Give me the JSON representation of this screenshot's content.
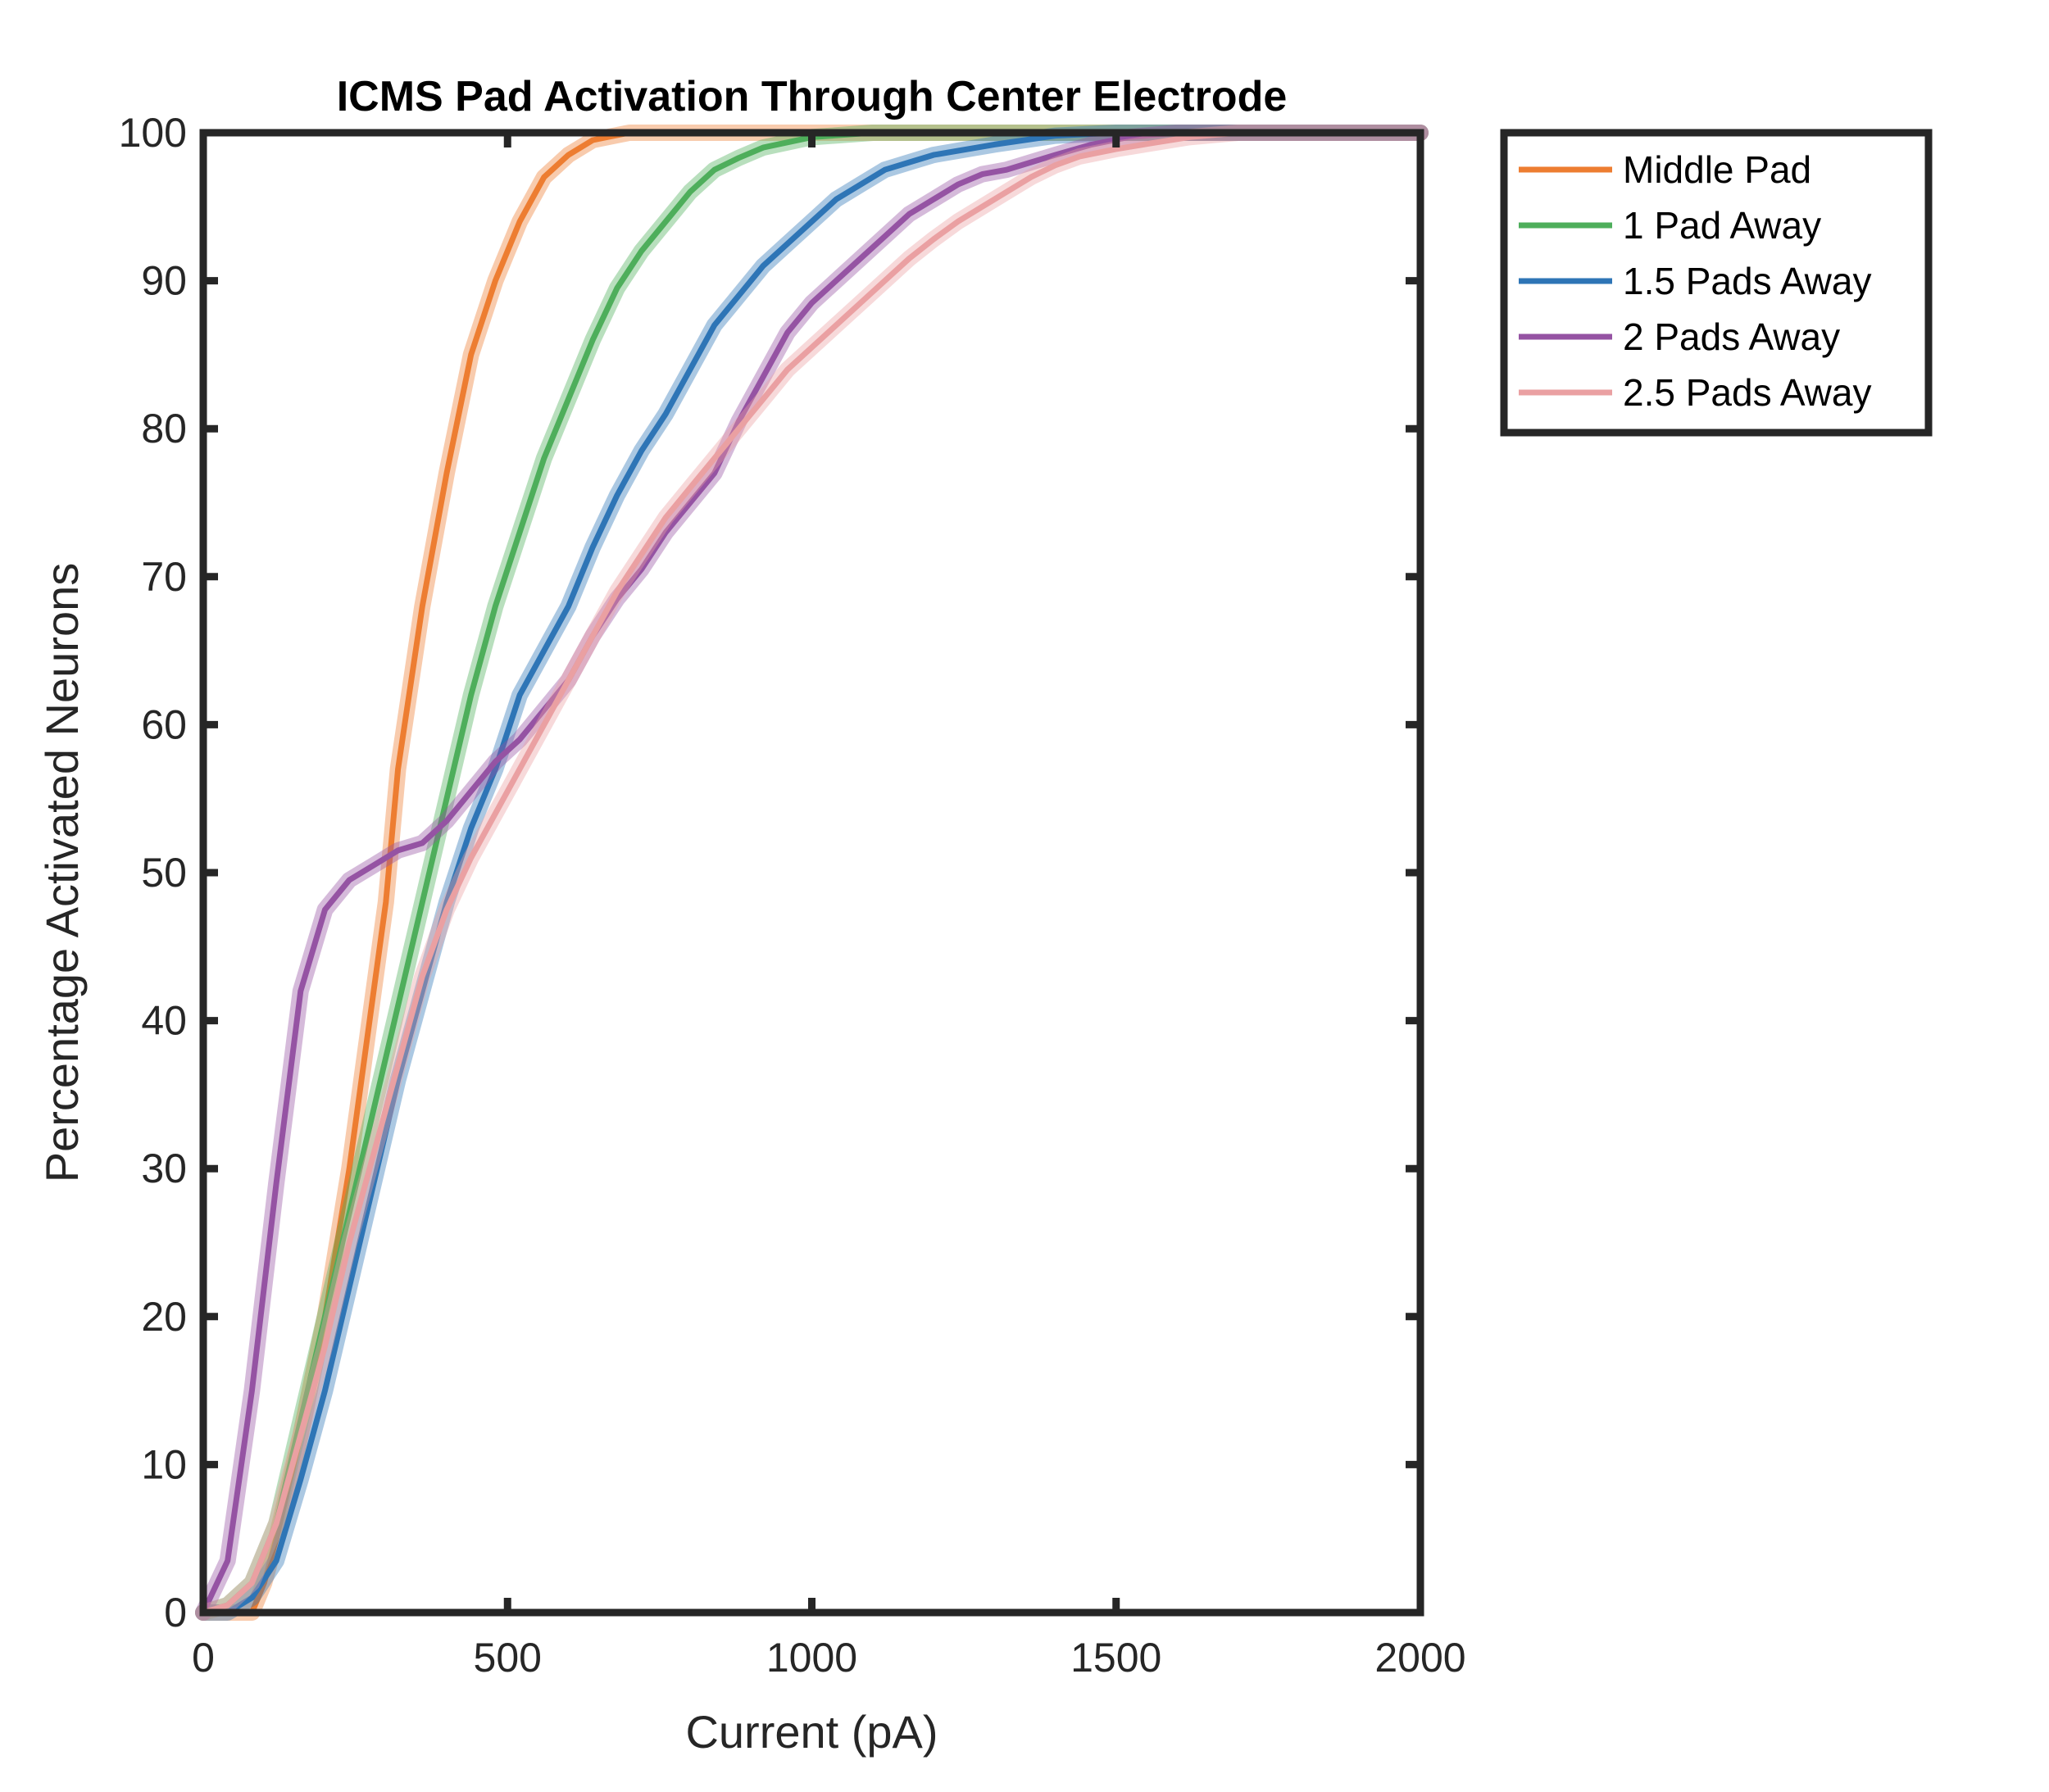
{
  "chart_data": {
    "type": "line",
    "title": "ICMS Pad Activation Through Center Electrode",
    "xlabel": "Current (pA)",
    "ylabel": "Percentage Activated Neurons",
    "xlim": [
      0,
      2000
    ],
    "ylim": [
      0,
      100
    ],
    "xticks": [
      "0",
      "500",
      "1000",
      "1500",
      "2000"
    ],
    "yticks": [
      "0",
      "10",
      "20",
      "30",
      "40",
      "50",
      "60",
      "70",
      "80",
      "90",
      "100"
    ],
    "grid": false,
    "legend_position": "outside-top-right",
    "series": [
      {
        "name": "Middle Pad",
        "color": "#ED7D31",
        "points": [
          [
            0,
            0
          ],
          [
            40,
            0
          ],
          [
            80,
            0
          ],
          [
            100,
            2
          ],
          [
            120,
            5
          ],
          [
            160,
            12
          ],
          [
            200,
            20
          ],
          [
            240,
            30
          ],
          [
            280,
            42
          ],
          [
            300,
            48
          ],
          [
            320,
            57
          ],
          [
            360,
            68
          ],
          [
            400,
            77
          ],
          [
            440,
            85
          ],
          [
            480,
            90
          ],
          [
            520,
            94
          ],
          [
            560,
            97
          ],
          [
            600,
            98.5
          ],
          [
            640,
            99.5
          ],
          [
            700,
            100
          ],
          [
            2000,
            100
          ]
        ]
      },
      {
        "name": "1 Pad Away",
        "color": "#4EAE5B",
        "points": [
          [
            0,
            0
          ],
          [
            40,
            0.5
          ],
          [
            80,
            2
          ],
          [
            120,
            6
          ],
          [
            160,
            13
          ],
          [
            200,
            20
          ],
          [
            240,
            27
          ],
          [
            280,
            34
          ],
          [
            320,
            41
          ],
          [
            360,
            48
          ],
          [
            400,
            55
          ],
          [
            440,
            62
          ],
          [
            480,
            68
          ],
          [
            520,
            73
          ],
          [
            560,
            78
          ],
          [
            600,
            82
          ],
          [
            640,
            86
          ],
          [
            680,
            89.5
          ],
          [
            720,
            92
          ],
          [
            760,
            94
          ],
          [
            800,
            96
          ],
          [
            840,
            97.5
          ],
          [
            880,
            98.3
          ],
          [
            920,
            99
          ],
          [
            1000,
            99.7
          ],
          [
            1100,
            100
          ],
          [
            2000,
            100
          ]
        ]
      },
      {
        "name": "1.5 Pads Away",
        "color": "#2E75B6",
        "points": [
          [
            0,
            0
          ],
          [
            40,
            0
          ],
          [
            80,
            1
          ],
          [
            120,
            3.5
          ],
          [
            160,
            9
          ],
          [
            200,
            15
          ],
          [
            240,
            22
          ],
          [
            280,
            29
          ],
          [
            320,
            36
          ],
          [
            360,
            42
          ],
          [
            400,
            48
          ],
          [
            440,
            53
          ],
          [
            480,
            57
          ],
          [
            520,
            62
          ],
          [
            560,
            65
          ],
          [
            600,
            68
          ],
          [
            640,
            72
          ],
          [
            680,
            75.5
          ],
          [
            720,
            78.5
          ],
          [
            760,
            81
          ],
          [
            800,
            84
          ],
          [
            840,
            87
          ],
          [
            880,
            89
          ],
          [
            920,
            91
          ],
          [
            960,
            92.5
          ],
          [
            1000,
            94
          ],
          [
            1040,
            95.5
          ],
          [
            1080,
            96.5
          ],
          [
            1120,
            97.5
          ],
          [
            1160,
            98
          ],
          [
            1200,
            98.5
          ],
          [
            1300,
            99.2
          ],
          [
            1400,
            99.8
          ],
          [
            1500,
            100
          ],
          [
            2000,
            100
          ]
        ]
      },
      {
        "name": "2 Pads Away",
        "color": "#9553A3",
        "points": [
          [
            0,
            0
          ],
          [
            40,
            3.5
          ],
          [
            80,
            15
          ],
          [
            120,
            29
          ],
          [
            160,
            42
          ],
          [
            200,
            47.5
          ],
          [
            240,
            49.5
          ],
          [
            280,
            50.5
          ],
          [
            320,
            51.5
          ],
          [
            360,
            52
          ],
          [
            400,
            53.5
          ],
          [
            440,
            55.5
          ],
          [
            480,
            57.5
          ],
          [
            520,
            59
          ],
          [
            560,
            61
          ],
          [
            600,
            63
          ],
          [
            640,
            66
          ],
          [
            680,
            68.5
          ],
          [
            720,
            70.5
          ],
          [
            760,
            73
          ],
          [
            800,
            75
          ],
          [
            840,
            77
          ],
          [
            880,
            80.5
          ],
          [
            920,
            83.5
          ],
          [
            960,
            86.5
          ],
          [
            1000,
            88.5
          ],
          [
            1040,
            90
          ],
          [
            1080,
            91.5
          ],
          [
            1120,
            93
          ],
          [
            1160,
            94.5
          ],
          [
            1200,
            95.5
          ],
          [
            1240,
            96.5
          ],
          [
            1280,
            97.2
          ],
          [
            1320,
            97.5
          ],
          [
            1360,
            98
          ],
          [
            1400,
            98.5
          ],
          [
            1460,
            99.2
          ],
          [
            1520,
            99.7
          ],
          [
            1600,
            100
          ],
          [
            2000,
            100
          ]
        ]
      },
      {
        "name": "2.5 Pads Away",
        "color": "#EAA0A2",
        "points": [
          [
            0,
            0
          ],
          [
            40,
            0.5
          ],
          [
            80,
            2
          ],
          [
            120,
            6
          ],
          [
            160,
            12
          ],
          [
            200,
            18
          ],
          [
            240,
            25
          ],
          [
            280,
            31
          ],
          [
            320,
            37
          ],
          [
            360,
            43
          ],
          [
            400,
            47.5
          ],
          [
            440,
            51
          ],
          [
            480,
            54
          ],
          [
            520,
            57
          ],
          [
            560,
            60
          ],
          [
            600,
            63
          ],
          [
            640,
            66
          ],
          [
            680,
            69
          ],
          [
            720,
            71.5
          ],
          [
            760,
            74
          ],
          [
            800,
            76
          ],
          [
            840,
            78
          ],
          [
            880,
            80
          ],
          [
            920,
            82
          ],
          [
            960,
            84
          ],
          [
            1000,
            85.5
          ],
          [
            1040,
            87
          ],
          [
            1080,
            88.5
          ],
          [
            1120,
            90
          ],
          [
            1160,
            91.5
          ],
          [
            1200,
            92.8
          ],
          [
            1240,
            94
          ],
          [
            1280,
            95
          ],
          [
            1320,
            96
          ],
          [
            1360,
            97
          ],
          [
            1400,
            97.8
          ],
          [
            1440,
            98.4
          ],
          [
            1500,
            98.9
          ],
          [
            1560,
            99.3
          ],
          [
            1620,
            99.7
          ],
          [
            1700,
            100
          ],
          [
            2000,
            100
          ]
        ]
      }
    ]
  }
}
